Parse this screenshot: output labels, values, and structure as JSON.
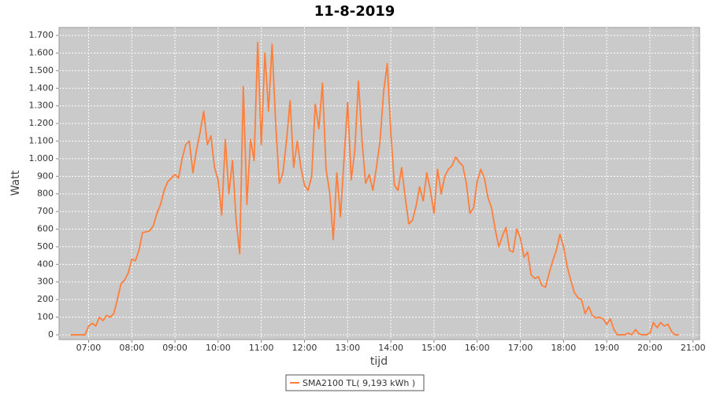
{
  "chart_data": {
    "type": "line",
    "title": "11-8-2019",
    "xlabel": "tijd",
    "ylabel": "Watt",
    "grid": true,
    "legend": "bottom",
    "xlim": [
      "06:19",
      "21:09"
    ],
    "xticks": [
      "07:00",
      "08:00",
      "09:00",
      "10:00",
      "11:00",
      "12:00",
      "13:00",
      "14:00",
      "15:00",
      "16:00",
      "17:00",
      "18:00",
      "19:00",
      "20:00",
      "21:00"
    ],
    "ylim": [
      -27,
      1745
    ],
    "yticks": [
      0,
      100,
      200,
      300,
      400,
      500,
      600,
      700,
      800,
      900,
      {
        "value": 1000,
        "label": "1.000"
      },
      {
        "value": 1100,
        "label": "1.100"
      },
      {
        "value": 1200,
        "label": "1.200"
      },
      {
        "value": 1300,
        "label": "1.300"
      },
      {
        "value": 1400,
        "label": "1.400"
      },
      {
        "value": 1500,
        "label": "1.500"
      },
      {
        "value": 1600,
        "label": "1.600"
      },
      {
        "value": 1700,
        "label": "1.700"
      }
    ],
    "x": [
      "06:35",
      "06:40",
      "06:45",
      "06:50",
      "06:55",
      "07:00",
      "07:05",
      "07:10",
      "07:15",
      "07:20",
      "07:25",
      "07:30",
      "07:35",
      "07:40",
      "07:45",
      "07:50",
      "07:55",
      "08:00",
      "08:05",
      "08:10",
      "08:15",
      "08:20",
      "08:25",
      "08:30",
      "08:35",
      "08:40",
      "08:45",
      "08:50",
      "08:55",
      "09:00",
      "09:05",
      "09:10",
      "09:15",
      "09:20",
      "09:25",
      "09:30",
      "09:35",
      "09:40",
      "09:45",
      "09:50",
      "09:55",
      "10:00",
      "10:05",
      "10:10",
      "10:15",
      "10:20",
      "10:25",
      "10:30",
      "10:35",
      "10:40",
      "10:45",
      "10:50",
      "10:55",
      "11:00",
      "11:05",
      "11:10",
      "11:15",
      "11:20",
      "11:25",
      "11:30",
      "11:35",
      "11:40",
      "11:45",
      "11:50",
      "11:55",
      "12:00",
      "12:05",
      "12:10",
      "12:15",
      "12:20",
      "12:25",
      "12:30",
      "12:35",
      "12:40",
      "12:45",
      "12:50",
      "12:55",
      "13:00",
      "13:05",
      "13:10",
      "13:15",
      "13:20",
      "13:25",
      "13:30",
      "13:35",
      "13:40",
      "13:45",
      "13:50",
      "13:55",
      "14:00",
      "14:05",
      "14:10",
      "14:15",
      "14:20",
      "14:25",
      "14:30",
      "14:35",
      "14:40",
      "14:45",
      "14:50",
      "14:55",
      "15:00",
      "15:05",
      "15:10",
      "15:15",
      "15:20",
      "15:25",
      "15:30",
      "15:35",
      "15:40",
      "15:45",
      "15:50",
      "15:55",
      "16:00",
      "16:05",
      "16:10",
      "16:15",
      "16:20",
      "16:25",
      "16:30",
      "16:35",
      "16:40",
      "16:45",
      "16:50",
      "16:55",
      "17:00",
      "17:05",
      "17:10",
      "17:15",
      "17:20",
      "17:25",
      "17:30",
      "17:35",
      "17:40",
      "17:45",
      "17:50",
      "17:55",
      "18:00",
      "18:05",
      "18:10",
      "18:15",
      "18:20",
      "18:25",
      "18:30",
      "18:35",
      "18:40",
      "18:45",
      "18:50",
      "18:55",
      "19:00",
      "19:05",
      "19:10",
      "19:15",
      "19:20",
      "19:25",
      "19:30",
      "19:35",
      "19:40",
      "19:45",
      "19:50",
      "19:55",
      "20:00",
      "20:05",
      "20:10",
      "20:15",
      "20:20",
      "20:25",
      "20:30",
      "20:35",
      "20:40"
    ],
    "series": [
      {
        "name": "SMA2100 TL( 9,193 kWh )",
        "color": "#ff7f3a",
        "values": [
          0,
          0,
          0,
          0,
          0,
          50,
          65,
          50,
          100,
          80,
          110,
          100,
          120,
          200,
          290,
          310,
          350,
          430,
          420,
          480,
          580,
          585,
          590,
          620,
          690,
          740,
          820,
          870,
          890,
          910,
          890,
          1000,
          1080,
          1100,
          920,
          1050,
          1150,
          1270,
          1080,
          1130,
          950,
          880,
          680,
          1110,
          800,
          990,
          650,
          460,
          1410,
          740,
          1110,
          990,
          1660,
          1080,
          1600,
          1270,
          1650,
          1200,
          860,
          920,
          1100,
          1330,
          950,
          1100,
          950,
          850,
          820,
          900,
          1310,
          1170,
          1430,
          940,
          810,
          540,
          920,
          670,
          1000,
          1320,
          880,
          1050,
          1440,
          1100,
          860,
          910,
          820,
          950,
          1100,
          1380,
          1540,
          1150,
          850,
          820,
          950,
          780,
          630,
          650,
          730,
          840,
          760,
          920,
          820,
          690,
          940,
          800,
          900,
          940,
          960,
          1010,
          980,
          960,
          860,
          690,
          720,
          870,
          940,
          890,
          780,
          720,
          600,
          500,
          560,
          610,
          480,
          470,
          600,
          550,
          440,
          470,
          340,
          320,
          330,
          280,
          270,
          350,
          420,
          480,
          570,
          500,
          390,
          310,
          240,
          210,
          200,
          120,
          160,
          110,
          95,
          100,
          90,
          60,
          90,
          30,
          0,
          0,
          0,
          10,
          0,
          30,
          5,
          0,
          0,
          10,
          70,
          40,
          70,
          50,
          60,
          20,
          0,
          0
        ]
      }
    ]
  }
}
